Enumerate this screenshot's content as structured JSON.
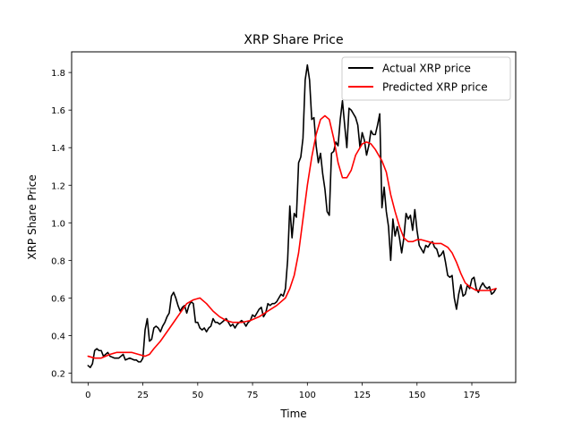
{
  "chart_data": {
    "type": "line",
    "title": "XRP Share Price",
    "xlabel": "Time",
    "ylabel": "XRP Share Price",
    "xlim": [
      -7.5,
      195
    ],
    "ylim": [
      0.15,
      1.91
    ],
    "xticks": [
      0,
      25,
      50,
      75,
      100,
      125,
      150,
      175
    ],
    "yticks": [
      0.2,
      0.4,
      0.6,
      0.8,
      1.0,
      1.2,
      1.4,
      1.6,
      1.8
    ],
    "xtick_labels": [
      "0",
      "25",
      "50",
      "75",
      "100",
      "125",
      "150",
      "175"
    ],
    "ytick_labels": [
      "0.2",
      "0.4",
      "0.6",
      "0.8",
      "1.0",
      "1.2",
      "1.4",
      "1.6",
      "1.8"
    ],
    "grid": false,
    "legend_position": "top-right",
    "series": [
      {
        "name": "Actual XRP price",
        "color": "#000000",
        "points": [
          [
            0,
            0.24
          ],
          [
            1,
            0.23
          ],
          [
            2,
            0.25
          ],
          [
            3,
            0.32
          ],
          [
            4,
            0.33
          ],
          [
            5,
            0.32
          ],
          [
            6,
            0.32
          ],
          [
            7,
            0.29
          ],
          [
            8,
            0.3
          ],
          [
            9,
            0.31
          ],
          [
            10,
            0.29
          ],
          [
            12,
            0.28
          ],
          [
            14,
            0.28
          ],
          [
            16,
            0.3
          ],
          [
            17,
            0.27
          ],
          [
            19,
            0.28
          ],
          [
            21,
            0.27
          ],
          [
            22,
            0.27
          ],
          [
            23,
            0.26
          ],
          [
            24,
            0.26
          ],
          [
            25,
            0.28
          ],
          [
            26,
            0.43
          ],
          [
            27,
            0.49
          ],
          [
            28,
            0.37
          ],
          [
            29,
            0.38
          ],
          [
            30,
            0.44
          ],
          [
            31,
            0.45
          ],
          [
            32,
            0.44
          ],
          [
            33,
            0.42
          ],
          [
            34,
            0.45
          ],
          [
            35,
            0.47
          ],
          [
            36,
            0.5
          ],
          [
            37,
            0.52
          ],
          [
            38,
            0.61
          ],
          [
            39,
            0.63
          ],
          [
            40,
            0.6
          ],
          [
            41,
            0.56
          ],
          [
            42,
            0.53
          ],
          [
            43,
            0.55
          ],
          [
            44,
            0.56
          ],
          [
            45,
            0.52
          ],
          [
            46,
            0.56
          ],
          [
            47,
            0.58
          ],
          [
            48,
            0.57
          ],
          [
            49,
            0.47
          ],
          [
            50,
            0.47
          ],
          [
            51,
            0.44
          ],
          [
            52,
            0.43
          ],
          [
            53,
            0.44
          ],
          [
            54,
            0.42
          ],
          [
            55,
            0.44
          ],
          [
            56,
            0.45
          ],
          [
            57,
            0.49
          ],
          [
            58,
            0.47
          ],
          [
            59,
            0.47
          ],
          [
            60,
            0.46
          ],
          [
            61,
            0.47
          ],
          [
            62,
            0.48
          ],
          [
            63,
            0.49
          ],
          [
            64,
            0.47
          ],
          [
            65,
            0.45
          ],
          [
            66,
            0.46
          ],
          [
            67,
            0.44
          ],
          [
            68,
            0.46
          ],
          [
            69,
            0.47
          ],
          [
            70,
            0.48
          ],
          [
            71,
            0.47
          ],
          [
            72,
            0.45
          ],
          [
            73,
            0.47
          ],
          [
            74,
            0.48
          ],
          [
            75,
            0.51
          ],
          [
            76,
            0.5
          ],
          [
            77,
            0.52
          ],
          [
            78,
            0.54
          ],
          [
            79,
            0.55
          ],
          [
            80,
            0.5
          ],
          [
            81,
            0.52
          ],
          [
            82,
            0.57
          ],
          [
            83,
            0.56
          ],
          [
            84,
            0.57
          ],
          [
            85,
            0.57
          ],
          [
            86,
            0.58
          ],
          [
            87,
            0.6
          ],
          [
            88,
            0.62
          ],
          [
            89,
            0.61
          ],
          [
            90,
            0.65
          ],
          [
            91,
            0.8
          ],
          [
            92,
            1.09
          ],
          [
            93,
            0.92
          ],
          [
            94,
            1.05
          ],
          [
            95,
            1.03
          ],
          [
            96,
            1.32
          ],
          [
            97,
            1.35
          ],
          [
            98,
            1.45
          ],
          [
            99,
            1.76
          ],
          [
            100,
            1.84
          ],
          [
            101,
            1.76
          ],
          [
            102,
            1.55
          ],
          [
            103,
            1.56
          ],
          [
            104,
            1.41
          ],
          [
            105,
            1.32
          ],
          [
            106,
            1.37
          ],
          [
            107,
            1.26
          ],
          [
            108,
            1.18
          ],
          [
            109,
            1.06
          ],
          [
            110,
            1.04
          ],
          [
            111,
            1.37
          ],
          [
            112,
            1.38
          ],
          [
            113,
            1.43
          ],
          [
            114,
            1.41
          ],
          [
            115,
            1.55
          ],
          [
            116,
            1.65
          ],
          [
            117,
            1.52
          ],
          [
            118,
            1.4
          ],
          [
            119,
            1.61
          ],
          [
            120,
            1.6
          ],
          [
            121,
            1.58
          ],
          [
            122,
            1.56
          ],
          [
            123,
            1.52
          ],
          [
            124,
            1.4
          ],
          [
            125,
            1.48
          ],
          [
            126,
            1.44
          ],
          [
            127,
            1.36
          ],
          [
            128,
            1.41
          ],
          [
            129,
            1.49
          ],
          [
            130,
            1.47
          ],
          [
            131,
            1.47
          ],
          [
            132,
            1.52
          ],
          [
            133,
            1.58
          ],
          [
            134,
            1.08
          ],
          [
            135,
            1.19
          ],
          [
            136,
            1.06
          ],
          [
            137,
            0.98
          ],
          [
            138,
            0.8
          ],
          [
            139,
            1.02
          ],
          [
            140,
            0.93
          ],
          [
            141,
            0.98
          ],
          [
            142,
            0.92
          ],
          [
            143,
            0.84
          ],
          [
            144,
            0.92
          ],
          [
            145,
            1.05
          ],
          [
            146,
            1.02
          ],
          [
            147,
            1.04
          ],
          [
            148,
            0.96
          ],
          [
            149,
            1.07
          ],
          [
            150,
            0.96
          ],
          [
            151,
            0.88
          ],
          [
            152,
            0.86
          ],
          [
            153,
            0.84
          ],
          [
            154,
            0.88
          ],
          [
            155,
            0.87
          ],
          [
            156,
            0.89
          ],
          [
            157,
            0.9
          ],
          [
            158,
            0.87
          ],
          [
            159,
            0.86
          ],
          [
            160,
            0.82
          ],
          [
            161,
            0.83
          ],
          [
            162,
            0.85
          ],
          [
            163,
            0.79
          ],
          [
            164,
            0.72
          ],
          [
            165,
            0.71
          ],
          [
            166,
            0.72
          ],
          [
            167,
            0.6
          ],
          [
            168,
            0.54
          ],
          [
            169,
            0.62
          ],
          [
            170,
            0.67
          ],
          [
            171,
            0.61
          ],
          [
            172,
            0.62
          ],
          [
            173,
            0.67
          ],
          [
            174,
            0.65
          ],
          [
            175,
            0.7
          ],
          [
            176,
            0.71
          ],
          [
            177,
            0.65
          ],
          [
            178,
            0.63
          ],
          [
            179,
            0.66
          ],
          [
            180,
            0.68
          ],
          [
            181,
            0.66
          ],
          [
            182,
            0.65
          ],
          [
            183,
            0.66
          ],
          [
            184,
            0.62
          ],
          [
            185,
            0.63
          ],
          [
            186,
            0.65
          ]
        ]
      },
      {
        "name": "Predicted XRP price",
        "color": "#ff0000",
        "points": [
          [
            0,
            0.29
          ],
          [
            3,
            0.28
          ],
          [
            6,
            0.28
          ],
          [
            10,
            0.3
          ],
          [
            13,
            0.31
          ],
          [
            16,
            0.31
          ],
          [
            20,
            0.31
          ],
          [
            23,
            0.3
          ],
          [
            26,
            0.29
          ],
          [
            28,
            0.3
          ],
          [
            30,
            0.33
          ],
          [
            33,
            0.37
          ],
          [
            36,
            0.42
          ],
          [
            39,
            0.47
          ],
          [
            42,
            0.52
          ],
          [
            45,
            0.57
          ],
          [
            48,
            0.59
          ],
          [
            51,
            0.6
          ],
          [
            54,
            0.57
          ],
          [
            57,
            0.53
          ],
          [
            60,
            0.5
          ],
          [
            63,
            0.48
          ],
          [
            66,
            0.47
          ],
          [
            70,
            0.47
          ],
          [
            74,
            0.48
          ],
          [
            78,
            0.5
          ],
          [
            82,
            0.53
          ],
          [
            86,
            0.56
          ],
          [
            90,
            0.6
          ],
          [
            92,
            0.65
          ],
          [
            94,
            0.72
          ],
          [
            96,
            0.84
          ],
          [
            98,
            1.02
          ],
          [
            100,
            1.2
          ],
          [
            102,
            1.35
          ],
          [
            104,
            1.47
          ],
          [
            106,
            1.55
          ],
          [
            108,
            1.57
          ],
          [
            110,
            1.55
          ],
          [
            112,
            1.45
          ],
          [
            114,
            1.32
          ],
          [
            116,
            1.24
          ],
          [
            118,
            1.24
          ],
          [
            120,
            1.28
          ],
          [
            122,
            1.36
          ],
          [
            125,
            1.42
          ],
          [
            127,
            1.43
          ],
          [
            129,
            1.42
          ],
          [
            131,
            1.39
          ],
          [
            134,
            1.33
          ],
          [
            136,
            1.27
          ],
          [
            138,
            1.15
          ],
          [
            140,
            1.06
          ],
          [
            142,
            0.98
          ],
          [
            144,
            0.92
          ],
          [
            146,
            0.9
          ],
          [
            148,
            0.9
          ],
          [
            150,
            0.91
          ],
          [
            152,
            0.91
          ],
          [
            155,
            0.9
          ],
          [
            158,
            0.89
          ],
          [
            161,
            0.89
          ],
          [
            164,
            0.87
          ],
          [
            166,
            0.84
          ],
          [
            168,
            0.79
          ],
          [
            170,
            0.73
          ],
          [
            172,
            0.68
          ],
          [
            174,
            0.66
          ],
          [
            177,
            0.64
          ],
          [
            180,
            0.64
          ],
          [
            183,
            0.64
          ],
          [
            186,
            0.65
          ]
        ]
      }
    ]
  }
}
